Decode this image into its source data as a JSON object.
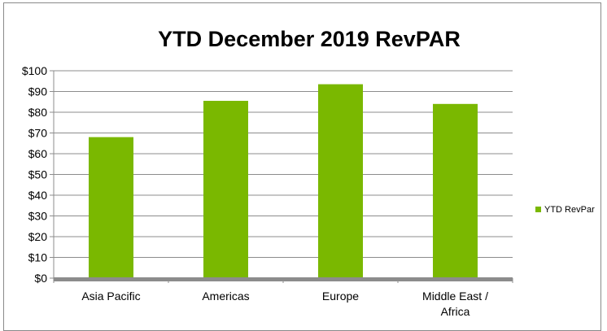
{
  "chart_data": {
    "type": "bar",
    "title": "YTD December 2019 RevPAR",
    "categories": [
      [
        "Asia Pacific"
      ],
      [
        "Americas"
      ],
      [
        "Europe"
      ],
      [
        "Middle East /",
        "Africa"
      ]
    ],
    "series": [
      {
        "name": "YTD RevPar",
        "values": [
          68,
          85.5,
          93.5,
          84
        ],
        "color": "#7ab800"
      }
    ],
    "ylim": [
      0,
      100
    ],
    "yticks": [
      0,
      10,
      20,
      30,
      40,
      50,
      60,
      70,
      80,
      90,
      100
    ],
    "ytick_labels": [
      "$0",
      "$10",
      "$20",
      "$30",
      "$40",
      "$50",
      "$60",
      "$70",
      "$80",
      "$90",
      "$100"
    ],
    "grid": true,
    "legend_position": "right"
  }
}
